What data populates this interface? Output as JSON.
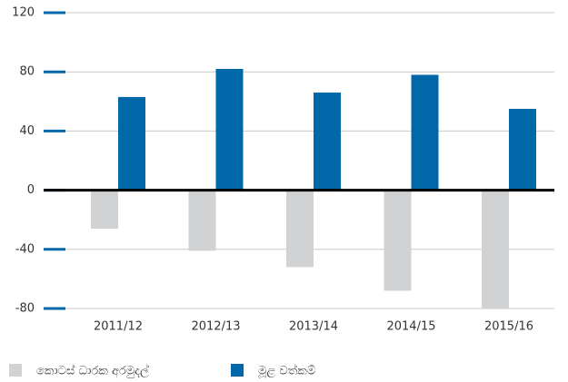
{
  "chart_data": {
    "type": "bar",
    "categories": [
      "2011/12",
      "2012/13",
      "2013/14",
      "2014/15",
      "2015/16"
    ],
    "series": [
      {
        "name": "කොටස් ධාරක අරමුදල්",
        "color": "#d1d2d4",
        "values": [
          -26,
          -41,
          -52,
          -68,
          -80
        ]
      },
      {
        "name": "මූළ වත්කම්",
        "color": "#0067a9",
        "values": [
          63,
          82,
          66,
          78,
          55
        ]
      }
    ],
    "ylim": [
      -80,
      120
    ],
    "yticks": [
      120,
      80,
      40,
      0,
      -40,
      -80
    ],
    "grid": true
  }
}
